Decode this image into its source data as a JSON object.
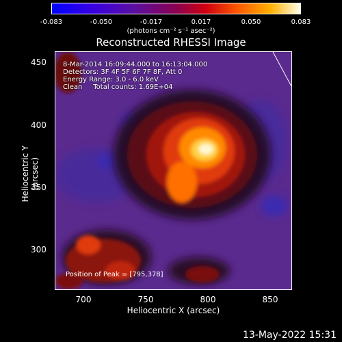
{
  "colorbar": {
    "ticks": [
      "-0.083",
      "-0.050",
      "-0.017",
      "0.017",
      "0.050",
      "0.083"
    ],
    "units": "(photons cm⁻² s⁻¹ asec⁻²)"
  },
  "title": "Reconstructed RHESSI Image",
  "info": {
    "line1": "8-Mar-2014 16:09:44.000 to 16:13:04.000",
    "line2": "Detectors: 3F 4F 5F 6F 7F 8F, Att 0",
    "line3": "Energy Range: 3.0 - 6.0 keV",
    "line4": "Clean     Total counts: 1.69E+04"
  },
  "peak": "Position of Peak = [795,378]",
  "axes": {
    "xlabel": "Heliocentric X (arcsec)",
    "ylabel": "Heliocentric Y (arcsec)",
    "xticks": [
      "700",
      "750",
      "800",
      "850"
    ],
    "yticks": [
      "450",
      "400",
      "350",
      "300"
    ]
  },
  "datestamp": "13-May-2022 15:31"
}
